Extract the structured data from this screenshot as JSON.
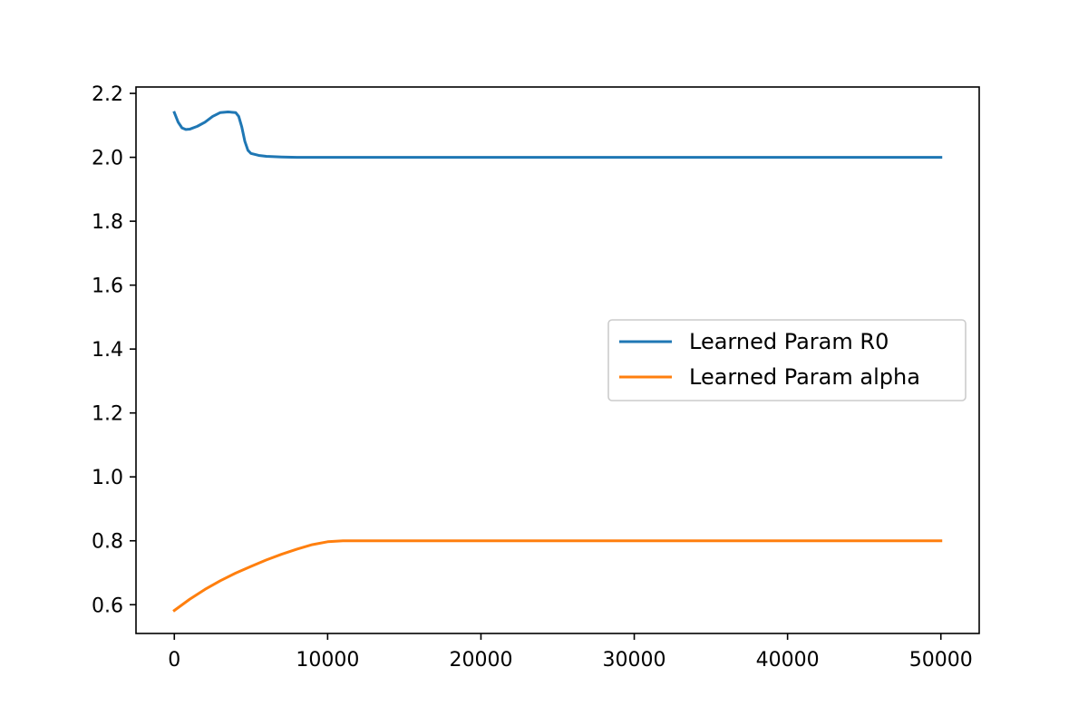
{
  "chart_data": {
    "type": "line",
    "title": "",
    "xlabel": "",
    "ylabel": "",
    "xlim": [
      -2500,
      52500
    ],
    "ylim": [
      0.51,
      2.22
    ],
    "xticks": [
      0,
      10000,
      20000,
      30000,
      40000,
      50000
    ],
    "xtick_labels": [
      "0",
      "10000",
      "20000",
      "30000",
      "40000",
      "50000"
    ],
    "yticks": [
      0.6,
      0.8,
      1.0,
      1.2,
      1.4,
      1.6,
      1.8,
      2.0,
      2.2
    ],
    "ytick_labels": [
      "0.6",
      "0.8",
      "1.0",
      "1.2",
      "1.4",
      "1.6",
      "1.8",
      "2.0",
      "2.2"
    ],
    "grid": false,
    "legend_position": "center-right",
    "series": [
      {
        "name": "Learned Param R0",
        "color": "#1f77b4",
        "points": [
          [
            0,
            2.14
          ],
          [
            250,
            2.11
          ],
          [
            500,
            2.092
          ],
          [
            750,
            2.087
          ],
          [
            1000,
            2.088
          ],
          [
            1500,
            2.097
          ],
          [
            2000,
            2.11
          ],
          [
            2500,
            2.128
          ],
          [
            3000,
            2.14
          ],
          [
            3500,
            2.142
          ],
          [
            4000,
            2.14
          ],
          [
            4200,
            2.128
          ],
          [
            4400,
            2.095
          ],
          [
            4600,
            2.05
          ],
          [
            4800,
            2.022
          ],
          [
            5000,
            2.012
          ],
          [
            5500,
            2.006
          ],
          [
            6000,
            2.003
          ],
          [
            7000,
            2.001
          ],
          [
            8000,
            2.0
          ],
          [
            10000,
            2.0
          ],
          [
            20000,
            2.0
          ],
          [
            30000,
            2.0
          ],
          [
            40000,
            2.0
          ],
          [
            50000,
            2.0
          ]
        ]
      },
      {
        "name": "Learned Param alpha",
        "color": "#ff7f0e",
        "points": [
          [
            0,
            0.582
          ],
          [
            1000,
            0.617
          ],
          [
            2000,
            0.648
          ],
          [
            3000,
            0.675
          ],
          [
            4000,
            0.699
          ],
          [
            5000,
            0.72
          ],
          [
            6000,
            0.74
          ],
          [
            7000,
            0.758
          ],
          [
            8000,
            0.774
          ],
          [
            9000,
            0.788
          ],
          [
            10000,
            0.797
          ],
          [
            11000,
            0.8
          ],
          [
            12000,
            0.8
          ],
          [
            20000,
            0.8
          ],
          [
            30000,
            0.8
          ],
          [
            40000,
            0.8
          ],
          [
            50000,
            0.8
          ]
        ]
      }
    ]
  }
}
